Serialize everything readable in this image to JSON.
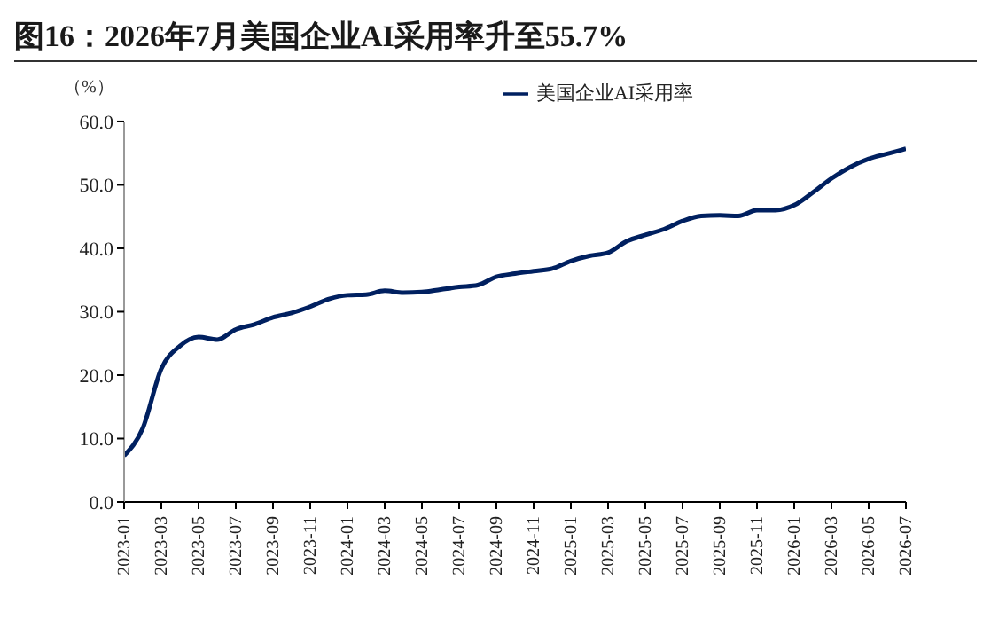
{
  "chart_data": {
    "type": "line",
    "title": "图16：2026年7月美国企业AI采用率升至55.7%",
    "ylabel": "（%）",
    "categories": [
      "2023-01",
      null,
      "2023-03",
      null,
      "2023-05",
      null,
      "2023-07",
      null,
      "2023-09",
      null,
      "2023-11",
      null,
      "2024-01",
      null,
      "2024-03",
      null,
      "2024-05",
      null,
      "2024-07",
      null,
      "2024-09",
      null,
      "2024-11",
      null,
      "2025-01",
      null,
      "2025-03",
      null,
      "2025-05",
      null,
      "2025-07",
      null,
      "2025-09",
      null,
      "2025-11",
      null,
      "2026-01",
      null,
      "2026-03",
      null,
      "2026-05",
      null,
      "2026-07"
    ],
    "series": [
      {
        "name": "美国企业AI采用率",
        "color": "#002060",
        "values": [
          7.3,
          11.6,
          21,
          24.6,
          26.0,
          25.6,
          27.2,
          28.0,
          29.1,
          29.8,
          30.8,
          32.0,
          32.6,
          32.7,
          33.3,
          33.0,
          33.1,
          33.5,
          33.9,
          34.2,
          35.5,
          36.0,
          36.4,
          36.8,
          38.0,
          38.8,
          39.3,
          41.1,
          42.1,
          43.0,
          44.3,
          45.1,
          45.2,
          45.1,
          46.0,
          46.0,
          46.8,
          48.8,
          51.0,
          52.8,
          54.1,
          54.9,
          55.7
        ]
      }
    ],
    "ylim": [
      0,
      60
    ],
    "yticks": [
      {
        "value": 0,
        "label": "0.0"
      },
      {
        "value": 10,
        "label": "10.0"
      },
      {
        "value": 20,
        "label": "20.0"
      },
      {
        "value": 30,
        "label": "30.0"
      },
      {
        "value": 40,
        "label": "40.0"
      },
      {
        "value": 50,
        "label": "50.0"
      },
      {
        "value": 60,
        "label": "60.0"
      }
    ],
    "legend": "top right"
  }
}
